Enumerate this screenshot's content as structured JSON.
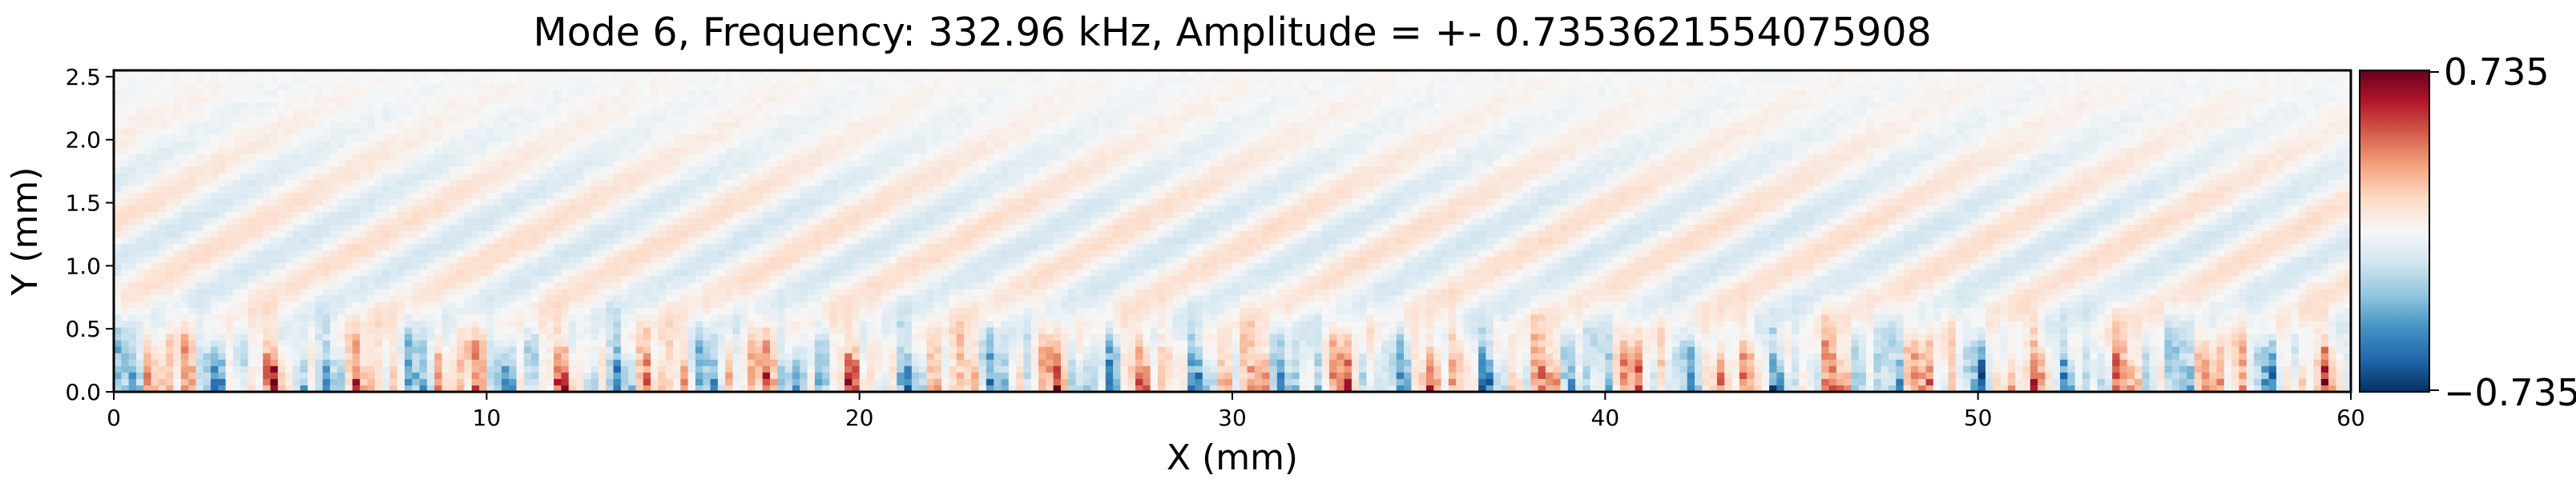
{
  "chart_data": {
    "type": "heatmap",
    "title": "Mode 6, Frequency: 332.96 kHz, Amplitude = +- 0.7353621554075908",
    "xlabel": "X (mm)",
    "ylabel": "Y (mm)",
    "xlim": [
      0,
      60
    ],
    "ylim": [
      0,
      2.55
    ],
    "x_ticks": [
      0,
      10,
      20,
      30,
      40,
      50,
      60
    ],
    "x_tick_labels": [
      "0",
      "10",
      "20",
      "30",
      "40",
      "50",
      "60"
    ],
    "y_ticks": [
      0.0,
      0.5,
      1.0,
      1.5,
      2.0,
      2.5
    ],
    "y_tick_labels": [
      "0.0",
      "0.5",
      "1.0",
      "1.5",
      "2.0",
      "2.5"
    ],
    "colormap": "RdBu_r",
    "color_range": [
      -0.735,
      0.735
    ],
    "colorbar": {
      "max_label": "0.735",
      "min_label": "−0.735",
      "position": "right"
    },
    "colors": {
      "negative_extreme": "#053061",
      "negative": "#2166ac",
      "neutral": "#f7f7f7",
      "positive": "#d6604d",
      "positive_extreme": "#67001f"
    },
    "description_of_field": "near-wall streaky pattern: strong alternating red/blue bands for Y < 0.7 mm, faint diagonal structures above",
    "grid": false
  }
}
